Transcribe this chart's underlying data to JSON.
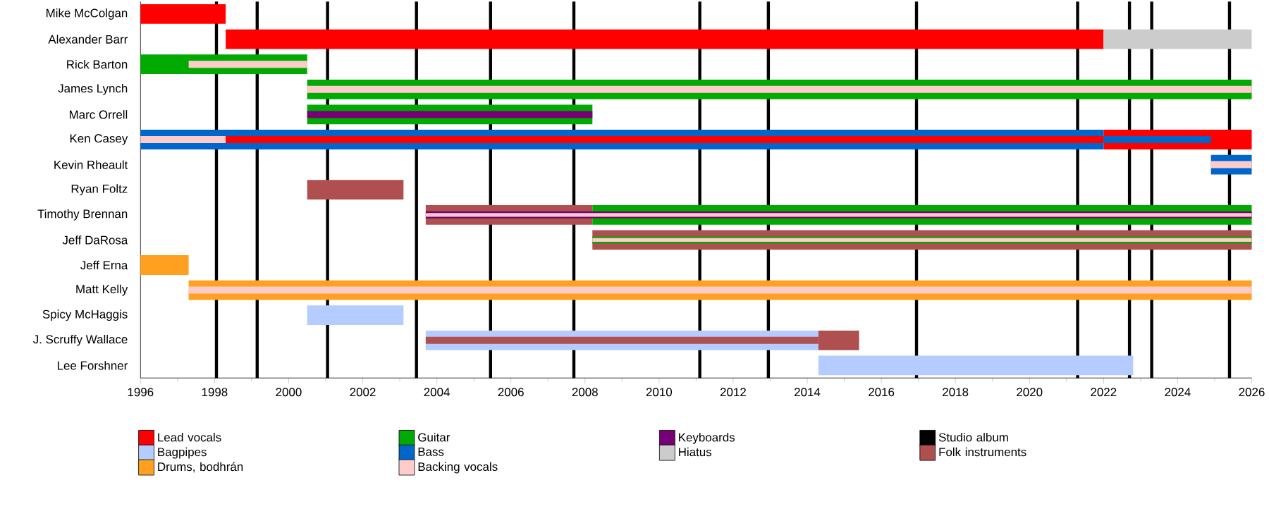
{
  "chart_data": {
    "type": "bar",
    "orientation": "horizontal",
    "categories": [
      "Mike McColgan",
      "Alexander Barr",
      "Rick Barton",
      "James Lynch",
      "Marc Orrell",
      "Ken Casey",
      "Kevin Rheault",
      "Ryan Foltz",
      "Timothy Brennan",
      "Jeff DaRosa",
      "Jeff Erna",
      "Matt Kelly",
      "Spicy McHaggis",
      "J. Scruffy Wallace",
      "Lee Forshner"
    ],
    "series": [
      {
        "name": "Lead vocals",
        "color": "#ff0000",
        "base": [
          1996,
          1998.3,
          null,
          null,
          null,
          2022,
          null,
          null,
          null,
          null,
          null,
          null,
          null,
          null,
          null
        ],
        "values": [
          2.3,
          23.7,
          null,
          null,
          null,
          4,
          null,
          null,
          null,
          null,
          null,
          null,
          null,
          null,
          null
        ]
      },
      {
        "name": "Bagpipes",
        "color": "#b4ccff",
        "base": [
          null,
          null,
          null,
          null,
          null,
          null,
          null,
          null,
          null,
          null,
          null,
          null,
          2000.5,
          2003.7,
          2014.3
        ],
        "values": [
          null,
          null,
          null,
          null,
          null,
          null,
          null,
          null,
          null,
          null,
          null,
          null,
          2.6,
          10.6,
          8.5
        ]
      },
      {
        "name": "Folk instruments",
        "color": "#b04f4f",
        "base": [
          null,
          null,
          null,
          null,
          null,
          null,
          null,
          2000.5,
          2003.7,
          2008.2,
          null,
          null,
          null,
          2003.7,
          null
        ],
        "values": [
          null,
          null,
          null,
          null,
          null,
          null,
          null,
          2.6,
          4.5,
          17.8,
          null,
          null,
          null,
          10.6,
          null
        ]
      },
      {
        "name": "Guitar",
        "color": "#00aa00",
        "base": [
          null,
          null,
          1996,
          2000.5,
          2000.5,
          null,
          null,
          null,
          2008.2,
          2008.2,
          null,
          null,
          null,
          null,
          null
        ],
        "values": [
          null,
          null,
          4.5,
          25.5,
          7.7,
          null,
          null,
          null,
          17.8,
          17.8,
          null,
          null,
          null,
          null,
          null
        ]
      },
      {
        "name": "Bass",
        "color": "#0066cc",
        "base": [
          null,
          null,
          null,
          null,
          null,
          1996,
          2024.9,
          null,
          null,
          null,
          null,
          null,
          null,
          null,
          null
        ],
        "values": [
          null,
          null,
          null,
          null,
          null,
          26,
          1.1,
          null,
          null,
          null,
          null,
          null,
          null,
          null,
          null
        ]
      },
      {
        "name": "Drums, bodhrán",
        "color": "#ffa020",
        "base": [
          null,
          null,
          null,
          null,
          null,
          null,
          null,
          null,
          null,
          null,
          1996,
          1997.3,
          null,
          null,
          null
        ],
        "values": [
          null,
          null,
          null,
          null,
          null,
          null,
          null,
          null,
          null,
          null,
          1.3,
          28.7,
          null,
          null,
          null
        ]
      },
      {
        "name": "Keyboards",
        "color": "#770077",
        "base": [
          null,
          null,
          null,
          null,
          2000.5,
          null,
          null,
          null,
          2003.7,
          null,
          null,
          null,
          null,
          null,
          null
        ],
        "values": [
          null,
          null,
          null,
          null,
          7.7,
          null,
          null,
          null,
          22.3,
          null,
          null,
          null,
          null,
          null,
          null
        ]
      },
      {
        "name": "Hiatus",
        "color": "#cccccc",
        "base": [
          null,
          2022,
          null,
          null,
          null,
          null,
          null,
          null,
          null,
          null,
          null,
          null,
          null,
          null,
          null
        ],
        "values": [
          null,
          4,
          null,
          null,
          null,
          null,
          null,
          null,
          null,
          null,
          null,
          null,
          null,
          null,
          null
        ]
      },
      {
        "name": "Backing vocals",
        "color": "#ffcccc",
        "base": [
          null,
          null,
          1997.3,
          2000.5,
          null,
          1996,
          2024.9,
          null,
          2003.7,
          2008.2,
          null,
          1997.3,
          null,
          null,
          null
        ],
        "values": [
          null,
          null,
          3.2,
          25.5,
          null,
          2.3,
          1.1,
          null,
          22.3,
          17.8,
          null,
          28.7,
          null,
          null,
          null
        ]
      },
      {
        "color": "#ff0000",
        "base": [
          null,
          null,
          null,
          null,
          null,
          1998.3,
          null,
          null,
          null,
          null,
          null,
          null,
          null,
          null,
          null
        ],
        "values": [
          null,
          null,
          null,
          null,
          null,
          23.7,
          null,
          null,
          null,
          null,
          null,
          null,
          null,
          null,
          null
        ]
      },
      {
        "color": "#0066cc",
        "base": [
          null,
          null,
          null,
          null,
          null,
          2022,
          null,
          null,
          null,
          null,
          null,
          null,
          null,
          null,
          null
        ],
        "values": [
          null,
          null,
          null,
          null,
          null,
          2.9,
          null,
          null,
          null,
          null,
          null,
          null,
          null,
          null,
          null
        ]
      },
      {
        "color": "#b04f4f",
        "base": [
          null,
          null,
          null,
          null,
          null,
          null,
          null,
          null,
          null,
          null,
          null,
          null,
          null,
          2014.3,
          null
        ],
        "values": [
          null,
          null,
          null,
          null,
          null,
          null,
          null,
          null,
          null,
          null,
          null,
          null,
          null,
          1.1,
          null
        ]
      }
    ],
    "ref_lines": [
      {
        "axis": "x",
        "value": 1998.05,
        "color": "#000000",
        "label": "Studio album"
      },
      {
        "axis": "x",
        "value": 1999.15,
        "color": "#000000"
      },
      {
        "axis": "x",
        "value": 2001.05,
        "color": "#000000"
      },
      {
        "axis": "x",
        "value": 2003.45,
        "color": "#000000"
      },
      {
        "axis": "x",
        "value": 2005.45,
        "color": "#000000"
      },
      {
        "axis": "x",
        "value": 2007.7,
        "color": "#000000"
      },
      {
        "axis": "x",
        "value": 2011.1,
        "color": "#000000"
      },
      {
        "axis": "x",
        "value": 2012.95,
        "color": "#000000"
      },
      {
        "axis": "x",
        "value": 2016.95,
        "color": "#000000"
      },
      {
        "axis": "x",
        "value": 2021.3,
        "color": "#000000"
      },
      {
        "axis": "x",
        "value": 2022.7,
        "color": "#000000"
      },
      {
        "axis": "x",
        "value": 2023.3,
        "color": "#000000"
      },
      {
        "axis": "x",
        "value": 2025.4,
        "color": "#000000"
      }
    ],
    "xlim": [
      1996,
      2026
    ],
    "xticks": [
      1996,
      {
        "value": 1997,
        "label": null
      },
      1998,
      {
        "value": 1999,
        "label": null
      },
      2000,
      {
        "value": 2001,
        "label": null
      },
      2002,
      {
        "value": 2003,
        "label": null
      },
      2004,
      {
        "value": 2005,
        "label": null
      },
      2006,
      {
        "value": 2007,
        "label": null
      },
      2008,
      {
        "value": 2009,
        "label": null
      },
      2010,
      {
        "value": 2011,
        "label": null
      },
      2012,
      {
        "value": 2013,
        "label": null
      },
      2014,
      {
        "value": 2015,
        "label": null
      },
      2016,
      {
        "value": 2017,
        "label": null
      },
      2018,
      {
        "value": 2019,
        "label": null
      },
      2020,
      {
        "value": 2021,
        "label": null
      },
      2022,
      {
        "value": 2023,
        "label": null
      },
      2024,
      {
        "value": 2025,
        "label": null
      },
      2026
    ],
    "legend": "bottom"
  }
}
